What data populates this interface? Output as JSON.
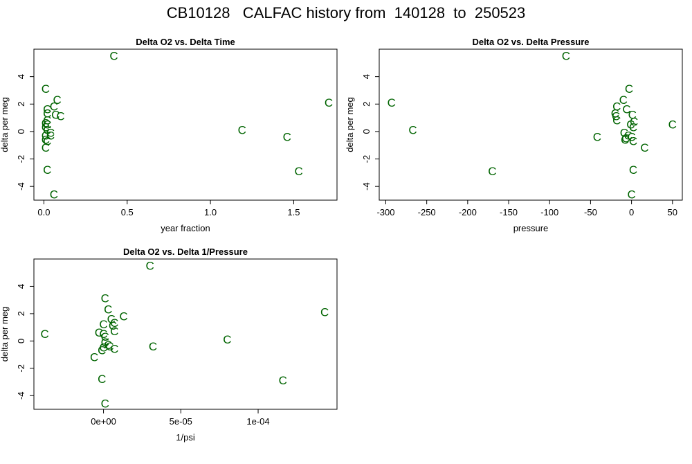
{
  "title": "CB10128   CALFAC history from  140128  to  250523",
  "mark_color": "#006400",
  "chart_data": [
    {
      "type": "scatter",
      "title": "Delta O2 vs. Delta Time",
      "xlabel": "year fraction",
      "ylabel": "delta per meg",
      "xlim": [
        -0.06,
        1.76
      ],
      "ylim": [
        -5.0,
        6.0
      ],
      "xticks": [
        0.0,
        0.5,
        1.0,
        1.5
      ],
      "xtick_labels": [
        "0.0",
        "0.5",
        "1.0",
        "1.5"
      ],
      "yticks": [
        -4,
        -2,
        0,
        2,
        4
      ],
      "ytick_labels": [
        "-4",
        "-2",
        "0",
        "2",
        "4"
      ],
      "marker": "C",
      "points": [
        {
          "x": 0.42,
          "y": 5.5
        },
        {
          "x": 0.01,
          "y": 3.1
        },
        {
          "x": 0.08,
          "y": 2.3
        },
        {
          "x": 1.71,
          "y": 2.1
        },
        {
          "x": 0.06,
          "y": 1.8
        },
        {
          "x": 0.02,
          "y": 1.6
        },
        {
          "x": 0.02,
          "y": 1.3
        },
        {
          "x": 0.07,
          "y": 1.2
        },
        {
          "x": 0.1,
          "y": 1.1
        },
        {
          "x": 0.02,
          "y": 0.8
        },
        {
          "x": 0.01,
          "y": 0.6
        },
        {
          "x": 0.02,
          "y": 0.5
        },
        {
          "x": 0.01,
          "y": 0.3
        },
        {
          "x": 0.02,
          "y": 0.1
        },
        {
          "x": 1.19,
          "y": 0.1
        },
        {
          "x": 0.04,
          "y": -0.1
        },
        {
          "x": 0.01,
          "y": -0.3
        },
        {
          "x": 0.04,
          "y": -0.3
        },
        {
          "x": 1.46,
          "y": -0.4
        },
        {
          "x": 0.01,
          "y": -0.6
        },
        {
          "x": 0.02,
          "y": -0.7
        },
        {
          "x": 0.01,
          "y": -1.2
        },
        {
          "x": 0.02,
          "y": -2.8
        },
        {
          "x": 1.53,
          "y": -2.9
        },
        {
          "x": 0.06,
          "y": -4.6
        }
      ]
    },
    {
      "type": "scatter",
      "title": "Delta O2 vs. Delta Pressure",
      "xlabel": "pressure",
      "ylabel": "delta per meg",
      "xlim": [
        -308,
        62
      ],
      "ylim": [
        -5.0,
        6.0
      ],
      "xticks": [
        -300,
        -250,
        -200,
        -150,
        -100,
        -50,
        0,
        50
      ],
      "xtick_labels": [
        "-300",
        "-250",
        "-200",
        "-150",
        "-100",
        "-50",
        "0",
        "50"
      ],
      "yticks": [
        -4,
        -2,
        0,
        2,
        4
      ],
      "ytick_labels": [
        "-4",
        "-2",
        "0",
        "2",
        "4"
      ],
      "marker": "C",
      "points": [
        {
          "x": -80,
          "y": 5.5
        },
        {
          "x": -3,
          "y": 3.1
        },
        {
          "x": -10,
          "y": 2.3
        },
        {
          "x": -293,
          "y": 2.1
        },
        {
          "x": -18,
          "y": 1.8
        },
        {
          "x": -6,
          "y": 1.6
        },
        {
          "x": -20,
          "y": 1.3
        },
        {
          "x": 1,
          "y": 1.2
        },
        {
          "x": -19,
          "y": 1.1
        },
        {
          "x": -18,
          "y": 0.8
        },
        {
          "x": 3,
          "y": 0.7
        },
        {
          "x": 50,
          "y": 0.5
        },
        {
          "x": -1,
          "y": 0.5
        },
        {
          "x": 2,
          "y": 0.3
        },
        {
          "x": -267,
          "y": 0.1
        },
        {
          "x": -9,
          "y": -0.1
        },
        {
          "x": -4,
          "y": -0.3
        },
        {
          "x": -42,
          "y": -0.4
        },
        {
          "x": -7,
          "y": -0.5
        },
        {
          "x": 0,
          "y": -0.4
        },
        {
          "x": -8,
          "y": -0.6
        },
        {
          "x": 2,
          "y": -0.7
        },
        {
          "x": 16,
          "y": -1.2
        },
        {
          "x": 2,
          "y": -2.8
        },
        {
          "x": -170,
          "y": -2.9
        },
        {
          "x": 0,
          "y": -4.6
        }
      ]
    },
    {
      "type": "scatter",
      "title": "Delta O2 vs. Delta 1/Pressure",
      "xlabel": "1/psi",
      "ylabel": "delta per meg",
      "xlim": [
        -4.5e-05,
        0.000151
      ],
      "ylim": [
        -5.0,
        6.0
      ],
      "xticks": [
        0,
        5e-05,
        0.0001
      ],
      "xtick_labels": [
        "0e+00",
        "5e-05",
        "1e-04"
      ],
      "yticks": [
        -4,
        -2,
        0,
        2,
        4
      ],
      "ytick_labels": [
        "-4",
        "-2",
        "0",
        "2",
        "4"
      ],
      "marker": "C",
      "points": [
        {
          "x": 3e-05,
          "y": 5.5
        },
        {
          "x": 1e-06,
          "y": 3.1
        },
        {
          "x": 3e-06,
          "y": 2.3
        },
        {
          "x": 0.000143,
          "y": 2.1
        },
        {
          "x": 1.3e-05,
          "y": 1.8
        },
        {
          "x": 5e-06,
          "y": 1.6
        },
        {
          "x": 7e-06,
          "y": 1.3
        },
        {
          "x": 0.0,
          "y": 1.2
        },
        {
          "x": 6e-06,
          "y": 1.1
        },
        {
          "x": 7e-06,
          "y": 0.7
        },
        {
          "x": -3e-06,
          "y": 0.6
        },
        {
          "x": 0.0,
          "y": 0.5
        },
        {
          "x": -3.8e-05,
          "y": 0.5
        },
        {
          "x": 1e-06,
          "y": 0.3
        },
        {
          "x": 8e-05,
          "y": 0.1
        },
        {
          "x": 1e-06,
          "y": -0.1
        },
        {
          "x": 3e-06,
          "y": -0.3
        },
        {
          "x": 3.2e-05,
          "y": -0.4
        },
        {
          "x": 4e-06,
          "y": -0.4
        },
        {
          "x": 7e-06,
          "y": -0.6
        },
        {
          "x": 0.0,
          "y": -0.5
        },
        {
          "x": -1e-06,
          "y": -0.7
        },
        {
          "x": -6e-06,
          "y": -1.2
        },
        {
          "x": -1e-06,
          "y": -2.8
        },
        {
          "x": 0.000116,
          "y": -2.9
        },
        {
          "x": 1e-06,
          "y": -4.6
        }
      ]
    }
  ]
}
